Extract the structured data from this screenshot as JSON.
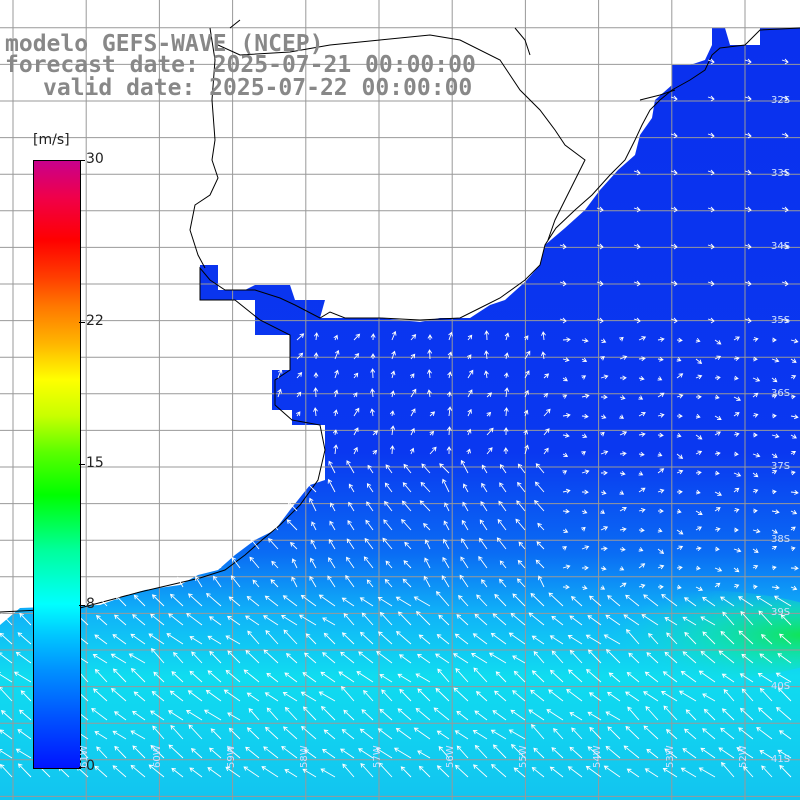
{
  "title": {
    "line1": "modelo GEFS-WAVE (NCEP)",
    "line2": "forecast date: 2025-07-21 00:00:00",
    "line3": "valid date: 2025-07-22 00:00:00"
  },
  "colorbar": {
    "unit": "[m/s]",
    "min": 0,
    "max": 30,
    "ticks": [
      "30",
      "22",
      "15",
      "8",
      "0"
    ],
    "tick_values": [
      30,
      22,
      15,
      8,
      0
    ]
  },
  "lat_labels": [
    "32S",
    "33S",
    "34S",
    "35S",
    "36S",
    "37S",
    "38S",
    "39S",
    "40S",
    "41S"
  ],
  "lat_values": [
    32,
    33,
    34,
    35,
    36,
    37,
    38,
    39,
    40,
    41
  ],
  "lon_labels": [
    "61W",
    "60W",
    "59W",
    "58W",
    "57W",
    "56W",
    "55W",
    "54W",
    "53W",
    "52W",
    "51W"
  ],
  "lon_values": [
    61,
    60,
    59,
    58,
    57,
    56,
    55,
    54,
    53,
    52,
    51
  ],
  "colors": {
    "land": "#ffffff",
    "coast": "#000000",
    "grid": "#999999",
    "low_wind": "#0a32f0",
    "mid_wind": "#0a8cf5",
    "high_wind": "#00f0c8",
    "peak_wind": "#00e650",
    "arrow": "#ffffff",
    "label_gray": "#888888"
  }
}
